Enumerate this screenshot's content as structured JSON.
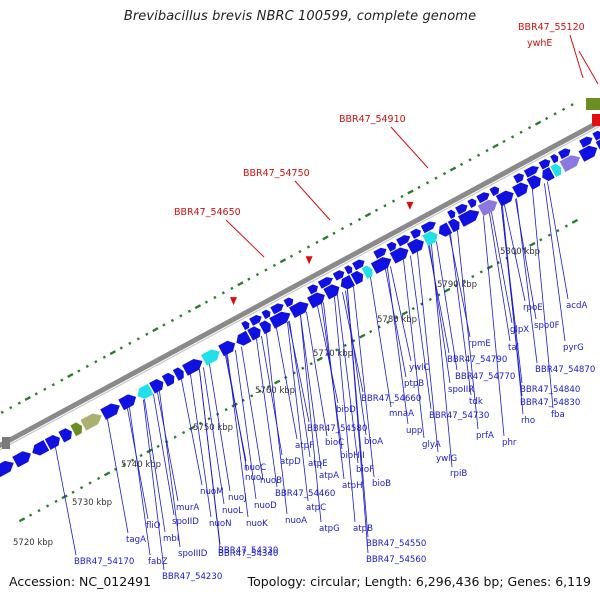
{
  "title": "Brevibacillus brevis NBRC 100599, complete genome",
  "accession": "Accession: NC_012491",
  "topology": "Topology: circular; Length: 6,296,436 bp; Genes: 6,119",
  "colors": {
    "backbone": "#8a8a8a",
    "ticks": "#2e7d2e",
    "gene_blue": "#1010e0",
    "label_blue": "#1a1ad0",
    "label_red": "#d41010",
    "cyan": "#22e0e8",
    "olive": "#6b8e23",
    "pink": "#e0107a",
    "orange": "#f0a020",
    "purple": "#8a7ae0"
  },
  "scale_labels": [
    "5720 kbp",
    "5730 kbp",
    "5740 kbp",
    "5750 kbp",
    "5760 kbp",
    "5770 kbp",
    "5780 kbp",
    "5790 kbp",
    "5800 kbp"
  ],
  "red_labels": [
    "BBR47_54650",
    "BBR47_54750",
    "BBR47_54910",
    "BBR47_55120",
    "ywhE"
  ],
  "blue_labels": [
    "acdA",
    "rpoE",
    "spo0F",
    "pyrG",
    "glpX",
    "tal",
    "BBR47_54870",
    "rpmE",
    "BBR47_54790",
    "BBR47_54770",
    "BBR47_54840",
    "BBR47_54830",
    "fba",
    "rho",
    "phr",
    "prfA",
    "tdk",
    "spoIIR",
    "ptpB",
    "ywlC",
    "BBR47_54660",
    "BBR47_54730",
    "mnaA",
    "upp",
    "glyA",
    "ywlG",
    "rpiB",
    "bioD",
    "BBR47_54580",
    "bioC",
    "bioA",
    "bioHII",
    "bioF",
    "bioB",
    "atpF",
    "atpH",
    "atpE",
    "atpD",
    "nuoC",
    "nuoI",
    "nuoB",
    "atpA",
    "BBR47_54460",
    "nuoJ",
    "atpC",
    "nuoM",
    "nuoL",
    "nuoD",
    "atpG",
    "nuoA",
    "nuoK",
    "nuoN",
    "atpB",
    "murA",
    "spoIID",
    "BBR47_54330",
    "BBR47_54340",
    "BBR47_54550",
    "BBR47_54560",
    "mbl",
    "spoIIID",
    "fliO",
    "tagA",
    "fabZ",
    "BBR47_54170",
    "BBR47_54230"
  ]
}
